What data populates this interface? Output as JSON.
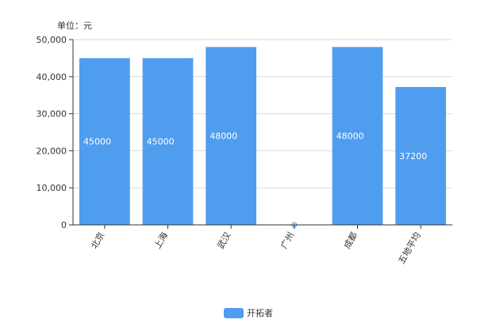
{
  "chart_data": {
    "type": "bar",
    "unit_label": "单位：元",
    "categories": [
      "北京",
      "上海",
      "武汉",
      "广州",
      "成都",
      "五地平均"
    ],
    "series": [
      {
        "name": "开拓者",
        "values": [
          45000,
          45000,
          48000,
          0,
          48000,
          37200
        ],
        "data_labels": [
          "45000",
          "45000",
          "48000",
          "0",
          "48000",
          "37200"
        ],
        "color": "#4F9DEE"
      }
    ],
    "y_ticks": [
      0,
      10000,
      20000,
      30000,
      40000,
      50000
    ],
    "y_tick_labels": [
      "0",
      "10,000",
      "20,000",
      "30,000",
      "40,000",
      "50,000"
    ],
    "ylim": [
      0,
      50000
    ],
    "grid": true,
    "legend_position": "bottom-center"
  }
}
